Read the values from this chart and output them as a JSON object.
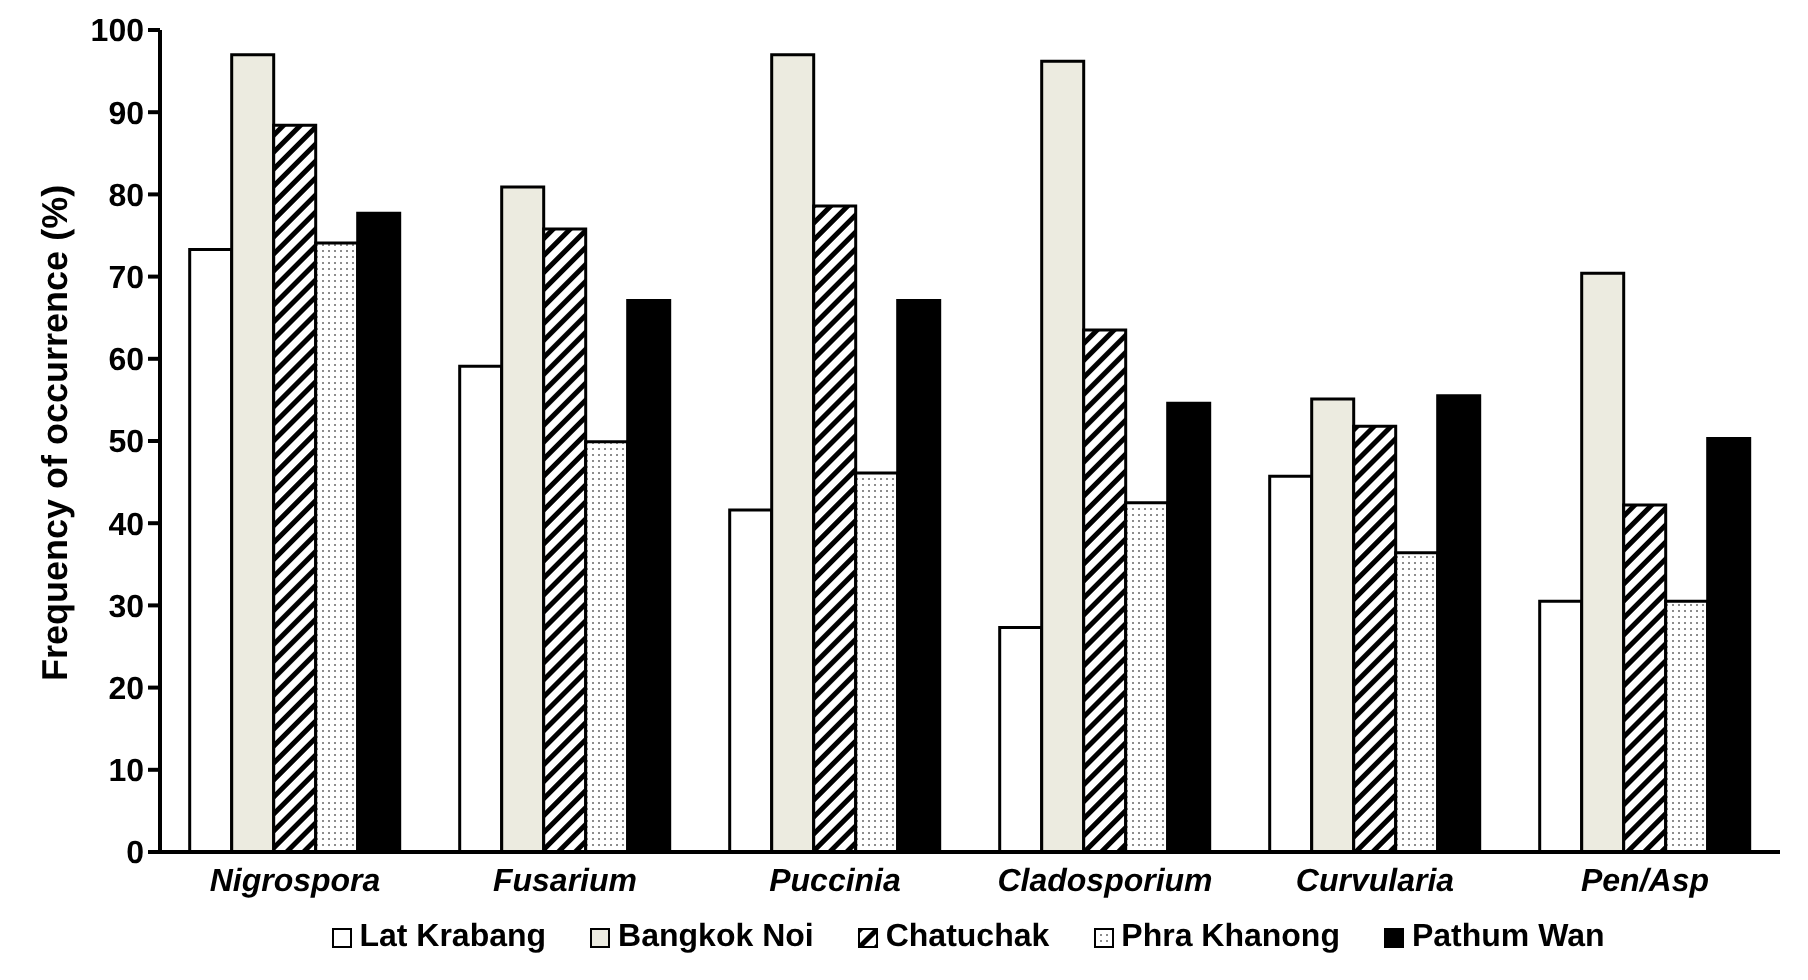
{
  "chart_data": {
    "type": "bar",
    "ylabel": "Frequency of occurrence (%)",
    "categories": [
      "Nigrospora",
      "Fusarium",
      "Puccinia",
      "Cladosporium",
      "Curvularia",
      "Pen/Asp"
    ],
    "series": [
      {
        "name": "Lat Krabang",
        "color": "#ffffff",
        "values": [
          73.3,
          59.1,
          41.6,
          27.3,
          45.7,
          30.5
        ]
      },
      {
        "name": "Bangkok Noi",
        "color": "#ecebe0",
        "values": [
          97.0,
          80.9,
          97.0,
          96.2,
          55.1,
          70.4
        ]
      },
      {
        "name": "Chatuchak",
        "color": "#000000",
        "values": [
          88.4,
          75.8,
          78.6,
          63.5,
          51.8,
          42.2
        ]
      },
      {
        "name": "Phra Khanong",
        "color": "#000000",
        "values": [
          74.1,
          49.9,
          46.1,
          42.5,
          36.4,
          30.5
        ]
      },
      {
        "name": "Pathum Wan",
        "color": "#000000",
        "values": [
          77.7,
          67.1,
          67.1,
          54.6,
          55.5,
          50.3
        ]
      }
    ],
    "ylim": [
      0,
      100
    ],
    "yticks": [
      0,
      10,
      20,
      30,
      40,
      50,
      60,
      70,
      80,
      90,
      100
    ],
    "grid": false,
    "legend": "bottom"
  }
}
